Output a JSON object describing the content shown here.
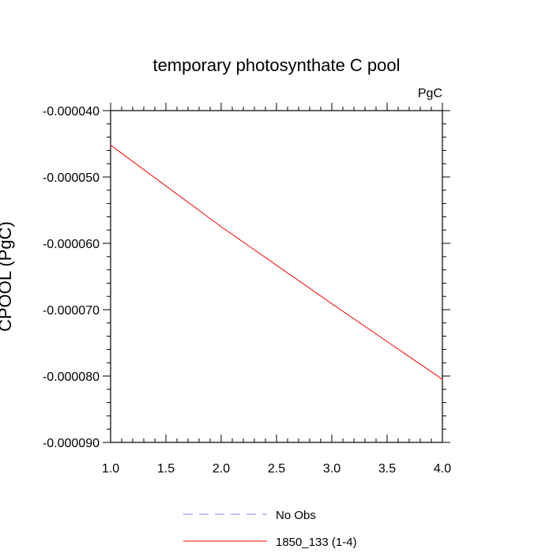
{
  "chart_data": {
    "type": "line",
    "title": "temporary photosynthate C pool",
    "units_label": "PgC",
    "ylabel": "CPOOL (PgC)",
    "xlabel": "",
    "xlim": [
      1.0,
      4.0
    ],
    "ylim": [
      -9e-05,
      -4e-05
    ],
    "x_ticks": [
      "1.0",
      "1.5",
      "2.0",
      "2.5",
      "3.0",
      "3.5",
      "4.0"
    ],
    "y_ticks": [
      "-0.000040",
      "-0.000050",
      "-0.000060",
      "-0.000070",
      "-0.000080",
      "-0.000090"
    ],
    "grid": false,
    "legend_position": "bottom",
    "series": [
      {
        "name": "No Obs",
        "color": "#8080ff",
        "style": "dashed",
        "x": [],
        "y": []
      },
      {
        "name": "1850_133 (1-4)",
        "color": "#ff0000",
        "style": "solid",
        "x": [
          1.0,
          2.0,
          3.0,
          4.0
        ],
        "y": [
          -4.52e-05,
          -5.75e-05,
          -6.91e-05,
          -8.05e-05
        ]
      }
    ]
  }
}
